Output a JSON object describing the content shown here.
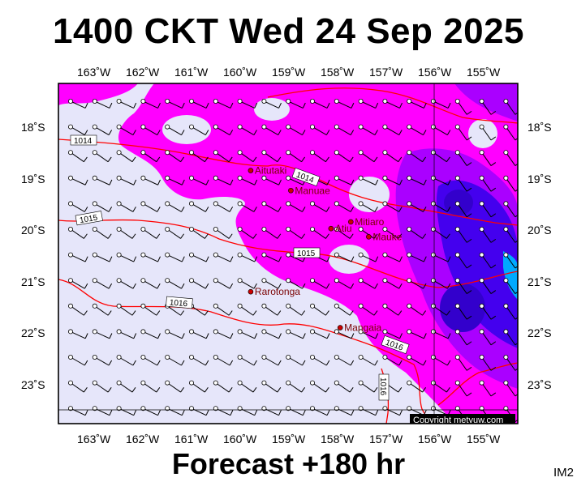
{
  "title": "1400 CKT Wed 24 Sep 2025",
  "footer": "Forecast +180 hr",
  "code": "IM2",
  "copyright": "Copyright metvuw.com",
  "colors": {
    "ocean": "#e6e6fa",
    "rain_light": "#ff00ff",
    "rain_mid": "#aa00ff",
    "rain_heavy": "#4400ee",
    "rain_max": "#00aaff",
    "isobar": "#ff0000",
    "place_dot": "#cc0000"
  },
  "lon_labels": [
    "163˚W",
    "162˚W",
    "161˚W",
    "160˚W",
    "159˚W",
    "158˚W",
    "157˚W",
    "156˚W",
    "155˚W"
  ],
  "lat_labels": [
    "18˚S",
    "19˚S",
    "20˚S",
    "21˚S",
    "22˚S",
    "23˚S"
  ],
  "places": [
    {
      "name": "Aitutaki",
      "lon": -159.78,
      "lat": -18.86
    },
    {
      "name": "Manuae",
      "lon": -158.95,
      "lat": -19.25
    },
    {
      "name": "Atiu",
      "lon": -158.12,
      "lat": -19.99
    },
    {
      "name": "Mitiaro",
      "lon": -157.71,
      "lat": -19.86
    },
    {
      "name": "Mauke",
      "lon": -157.34,
      "lat": -20.15
    },
    {
      "name": "Rarotonga",
      "lon": -159.78,
      "lat": -21.22
    },
    {
      "name": "Mangaia",
      "lon": -157.93,
      "lat": -21.92
    }
  ],
  "isobar_labels": [
    "1014",
    "1014",
    "1015",
    "1015",
    "1016",
    "1016",
    "1016"
  ]
}
